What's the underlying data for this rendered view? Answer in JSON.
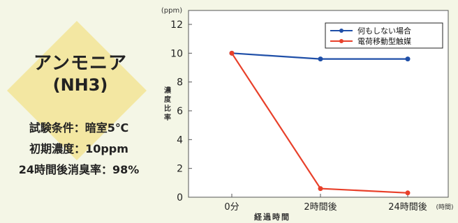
{
  "panel": {
    "title": "アンモニア",
    "formula": "(NH3)",
    "conditions": [
      "試験条件：暗室5℃",
      "初期濃度：10ppm",
      "24時間後消臭率：98%"
    ],
    "colors": {
      "diamond": "#f3e7a2",
      "background": "#f4f6e6"
    }
  },
  "chart_data": {
    "type": "line",
    "categories": [
      "0分",
      "2時間後",
      "24時間後"
    ],
    "series": [
      {
        "name": "何もしない場合",
        "values": [
          10.0,
          9.6,
          9.6
        ],
        "color": "#1f4fa8"
      },
      {
        "name": "電荷移動型触媒",
        "values": [
          10.0,
          0.6,
          0.3
        ],
        "color": "#e8402a"
      }
    ],
    "ylabel": "濃度比率",
    "yunit": "(ppm)",
    "xlabel": "経過時間",
    "xunit": "(時間)",
    "ylim": [
      0,
      12
    ],
    "yticks": [
      0,
      2,
      4,
      6,
      8,
      10,
      12
    ],
    "grid": false,
    "legend_position": "top-right"
  }
}
